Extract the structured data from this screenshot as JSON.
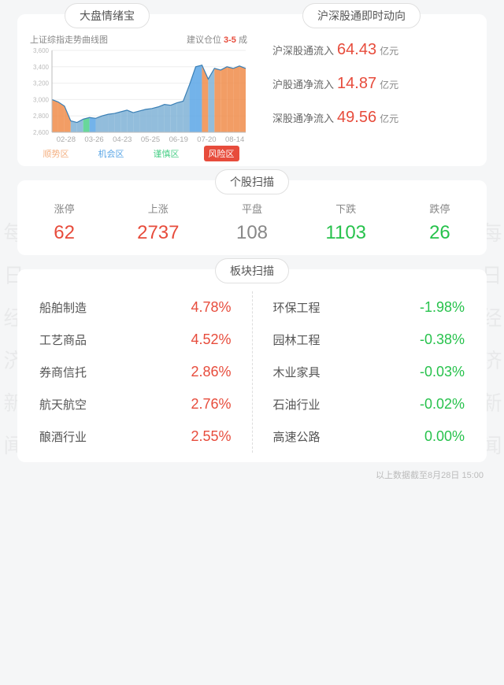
{
  "watermark_text": "每日经济新闻",
  "colors": {
    "up": "#e74c3c",
    "down": "#27c24c",
    "flat": "#888888",
    "axis": "#bbbbbb",
    "grid": "#eeeeee",
    "fill_main": "#7fb2d6",
    "fill_risk": "#f08c4a",
    "fill_opp": "#5aa6e6",
    "fill_caution": "#4dd08a",
    "risk_tag_bg": "#e74c3c",
    "risk_tag_fg": "#ffffff"
  },
  "sentiment": {
    "title": "大盘情绪宝",
    "chart_subtitle": "上证综指走势曲线图",
    "suggest_prefix": "建议仓位",
    "suggest_range": "3-5",
    "suggest_suffix": " 成",
    "ylim": [
      2600,
      3600
    ],
    "yticks": [
      2600,
      2800,
      3000,
      3200,
      3400,
      3600
    ],
    "xticks": [
      "02-28",
      "03-26",
      "04-23",
      "05-25",
      "06-19",
      "07-20",
      "08-14"
    ],
    "series": [
      {
        "y": 3000,
        "zone": "risk"
      },
      {
        "y": 2970,
        "zone": "risk"
      },
      {
        "y": 2920,
        "zone": "risk"
      },
      {
        "y": 2740,
        "zone": "trend"
      },
      {
        "y": 2720,
        "zone": "trend"
      },
      {
        "y": 2760,
        "zone": "caution"
      },
      {
        "y": 2780,
        "zone": "opp"
      },
      {
        "y": 2770,
        "zone": "trend"
      },
      {
        "y": 2800,
        "zone": "trend"
      },
      {
        "y": 2820,
        "zone": "trend"
      },
      {
        "y": 2830,
        "zone": "trend"
      },
      {
        "y": 2850,
        "zone": "trend"
      },
      {
        "y": 2870,
        "zone": "trend"
      },
      {
        "y": 2840,
        "zone": "trend"
      },
      {
        "y": 2860,
        "zone": "trend"
      },
      {
        "y": 2880,
        "zone": "trend"
      },
      {
        "y": 2890,
        "zone": "trend"
      },
      {
        "y": 2910,
        "zone": "trend"
      },
      {
        "y": 2940,
        "zone": "trend"
      },
      {
        "y": 2930,
        "zone": "trend"
      },
      {
        "y": 2960,
        "zone": "trend"
      },
      {
        "y": 2980,
        "zone": "trend"
      },
      {
        "y": 3180,
        "zone": "opp"
      },
      {
        "y": 3400,
        "zone": "opp"
      },
      {
        "y": 3420,
        "zone": "risk"
      },
      {
        "y": 3250,
        "zone": "trend"
      },
      {
        "y": 3380,
        "zone": "risk"
      },
      {
        "y": 3360,
        "zone": "risk"
      },
      {
        "y": 3400,
        "zone": "risk"
      },
      {
        "y": 3380,
        "zone": "risk"
      },
      {
        "y": 3410,
        "zone": "risk"
      },
      {
        "y": 3380,
        "zone": "risk"
      }
    ],
    "legend": [
      {
        "label": "顺势区",
        "color": "#f4b183"
      },
      {
        "label": "机会区",
        "color": "#5aa6e6"
      },
      {
        "label": "谨慎区",
        "color": "#4dd08a"
      },
      {
        "label": "风险区",
        "color": "#ffffff",
        "bg": "#e74c3c"
      }
    ]
  },
  "flows": {
    "title": "沪深股通即时动向",
    "unit": "亿元",
    "items": [
      {
        "label": "沪深股通流入",
        "value": "64.43"
      },
      {
        "label": "沪股通净流入",
        "value": "14.87"
      },
      {
        "label": "深股通净流入",
        "value": "49.56"
      }
    ]
  },
  "stock_scan": {
    "title": "个股扫描",
    "items": [
      {
        "label": "涨停",
        "value": "62",
        "dir": "up"
      },
      {
        "label": "上涨",
        "value": "2737",
        "dir": "up"
      },
      {
        "label": "平盘",
        "value": "108",
        "dir": "flat"
      },
      {
        "label": "下跌",
        "value": "1103",
        "dir": "down"
      },
      {
        "label": "跌停",
        "value": "26",
        "dir": "down"
      }
    ]
  },
  "sector_scan": {
    "title": "板块扫描",
    "gainers": [
      {
        "name": "船舶制造",
        "pct": "4.78%"
      },
      {
        "name": "工艺商品",
        "pct": "4.52%"
      },
      {
        "name": "券商信托",
        "pct": "2.86%"
      },
      {
        "name": "航天航空",
        "pct": "2.76%"
      },
      {
        "name": "酿酒行业",
        "pct": "2.55%"
      }
    ],
    "losers": [
      {
        "name": "环保工程",
        "pct": "-1.98%"
      },
      {
        "name": "园林工程",
        "pct": "-0.38%"
      },
      {
        "name": "木业家具",
        "pct": "-0.03%"
      },
      {
        "name": "石油行业",
        "pct": "-0.02%"
      },
      {
        "name": "高速公路",
        "pct": "0.00%"
      }
    ]
  },
  "footnote": "以上数据截至8月28日 15:00"
}
